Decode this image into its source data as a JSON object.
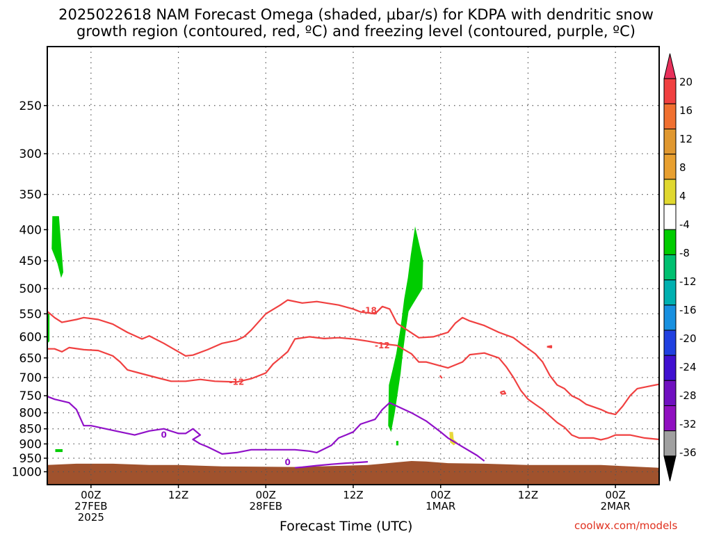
{
  "title": {
    "line1": "2025022618 NAM Forecast Omega (shaded, µbar/s) for KDPA with dendritic snow",
    "line2": "growth region (contoured, red, ºC) and freezing level (contoured, purple, ºC)"
  },
  "credit": "coolwx.com/models",
  "colors": {
    "omega_green": "#00cc00",
    "omega_yellow": "#e8d83a",
    "dgz_red": "#f04040",
    "freezing_purple": "#9010c8",
    "ground_brown": "#a0522d",
    "grid": "#555555"
  },
  "chart_data": {
    "type": "area",
    "title": "2025022618 NAM Forecast Omega (shaded, µbar/s) for KDPA with dendritic snow growth region (contoured, red, ºC) and freezing level (contoured, purple, ºC)",
    "xlabel": "Forecast Time (UTC)",
    "ylabel": "",
    "x_unit": "hours since 2025-02-26 18Z",
    "xlim": [
      0,
      84
    ],
    "y_scale": "log",
    "ylim": [
      1050,
      200
    ],
    "y_ticks": [
      250,
      300,
      350,
      400,
      450,
      500,
      550,
      600,
      650,
      700,
      750,
      800,
      850,
      900,
      950,
      1000
    ],
    "x_ticks": [
      {
        "x": 6,
        "lines": [
          "00Z",
          "27FEB",
          "2025"
        ]
      },
      {
        "x": 18,
        "lines": [
          "12Z"
        ]
      },
      {
        "x": 30,
        "lines": [
          "00Z",
          "28FEB"
        ]
      },
      {
        "x": 42,
        "lines": [
          "12Z"
        ]
      },
      {
        "x": 54,
        "lines": [
          "00Z",
          "1MAR"
        ]
      },
      {
        "x": 66,
        "lines": [
          "12Z"
        ]
      },
      {
        "x": 78,
        "lines": [
          "00Z",
          "2MAR"
        ]
      }
    ],
    "grid": true,
    "colorbar": {
      "label_values": [
        "20",
        "16",
        "12",
        "8",
        "4",
        "-4",
        "-8",
        "-12",
        "-16",
        "-20",
        "-24",
        "-28",
        "-32",
        "-36"
      ],
      "colors": [
        "#e8305a",
        "#f04040",
        "#f07030",
        "#e09830",
        "#e8a030",
        "#e0d830",
        "#ffffff",
        "#00cc00",
        "#00c070",
        "#00b0b0",
        "#1890e0",
        "#2040e0",
        "#4010d0",
        "#7010c0",
        "#9010c0",
        "#a0a0a0",
        "#000000"
      ]
    },
    "contour_labels": [
      {
        "text": "-18",
        "x": 44.2,
        "y": 543,
        "color": "#f04040"
      },
      {
        "text": "-12",
        "x": 46.0,
        "y": 620,
        "color": "#f04040"
      },
      {
        "text": "-12",
        "x": 26.0,
        "y": 712,
        "color": "#f04040"
      },
      {
        "text": "0",
        "x": 16.0,
        "y": 870,
        "color": "#9010c8"
      },
      {
        "text": "0",
        "x": 33.0,
        "y": 965,
        "color": "#9010c8"
      }
    ],
    "series": [
      {
        "kind": "contour",
        "value": -18,
        "color": "#f04040",
        "points": [
          [
            0,
            545
          ],
          [
            1,
            558
          ],
          [
            2,
            568
          ],
          [
            4,
            562
          ],
          [
            5,
            558
          ],
          [
            7,
            562
          ],
          [
            9,
            572
          ],
          [
            11,
            590
          ],
          [
            13,
            605
          ],
          [
            14,
            598
          ],
          [
            16,
            615
          ],
          [
            18,
            635
          ],
          [
            19,
            645
          ],
          [
            20,
            643
          ],
          [
            22,
            630
          ],
          [
            24,
            615
          ],
          [
            26,
            608
          ],
          [
            27,
            600
          ],
          [
            28,
            585
          ],
          [
            30,
            550
          ],
          [
            32,
            532
          ],
          [
            33,
            522
          ],
          [
            35,
            528
          ],
          [
            37,
            525
          ],
          [
            40,
            532
          ],
          [
            42,
            540
          ],
          [
            43,
            546
          ],
          [
            45,
            550
          ],
          [
            46,
            535
          ],
          [
            47,
            540
          ],
          [
            48,
            570
          ],
          [
            51,
            602
          ],
          [
            53,
            600
          ],
          [
            55,
            590
          ],
          [
            56,
            570
          ],
          [
            57,
            558
          ],
          [
            58,
            565
          ],
          [
            60,
            575
          ],
          [
            62,
            590
          ],
          [
            64,
            602
          ],
          [
            65,
            615
          ],
          [
            67,
            640
          ],
          [
            68,
            660
          ],
          [
            69,
            695
          ],
          [
            70,
            720
          ],
          [
            71,
            730
          ],
          [
            72,
            750
          ],
          [
            73,
            760
          ],
          [
            74,
            775
          ],
          [
            76,
            790
          ],
          [
            77,
            800
          ],
          [
            78,
            805
          ],
          [
            79,
            780
          ],
          [
            80,
            750
          ],
          [
            81,
            730
          ],
          [
            83,
            722
          ],
          [
            84,
            718
          ]
        ]
      },
      {
        "kind": "contour",
        "value": -12,
        "color": "#f04040",
        "points": [
          [
            0,
            628
          ],
          [
            1,
            628
          ],
          [
            2,
            635
          ],
          [
            3,
            625
          ],
          [
            5,
            630
          ],
          [
            7,
            632
          ],
          [
            9,
            645
          ],
          [
            10,
            660
          ],
          [
            11,
            680
          ],
          [
            13,
            690
          ],
          [
            15,
            700
          ],
          [
            17,
            710
          ],
          [
            19,
            710
          ],
          [
            21,
            705
          ],
          [
            23,
            710
          ],
          [
            26,
            712
          ],
          [
            28,
            703
          ],
          [
            30,
            688
          ],
          [
            31,
            665
          ],
          [
            32,
            650
          ],
          [
            33,
            635
          ],
          [
            34,
            605
          ],
          [
            36,
            600
          ],
          [
            38,
            604
          ],
          [
            40,
            602
          ],
          [
            42,
            605
          ],
          [
            44,
            610
          ],
          [
            46,
            616
          ],
          [
            48,
            620
          ],
          [
            50,
            640
          ],
          [
            51,
            660
          ],
          [
            52,
            660
          ],
          [
            54,
            670
          ],
          [
            55,
            675
          ],
          [
            57,
            660
          ],
          [
            58,
            642
          ],
          [
            60,
            638
          ],
          [
            62,
            650
          ],
          [
            63,
            672
          ],
          [
            64,
            700
          ],
          [
            65,
            735
          ],
          [
            66,
            760
          ],
          [
            67,
            775
          ],
          [
            68,
            790
          ],
          [
            69,
            810
          ],
          [
            70,
            830
          ],
          [
            71,
            845
          ],
          [
            72,
            870
          ],
          [
            73,
            880
          ],
          [
            75,
            880
          ],
          [
            76,
            886
          ],
          [
            77,
            880
          ],
          [
            78,
            870
          ],
          [
            80,
            870
          ],
          [
            82,
            880
          ],
          [
            84,
            885
          ]
        ]
      },
      {
        "kind": "contour",
        "value": -12,
        "color": "#f04040",
        "points": [
          [
            62.2,
            740
          ],
          [
            62.7,
            737
          ],
          [
            62.9,
            744
          ],
          [
            62.4,
            745
          ],
          [
            62.2,
            740
          ]
        ]
      },
      {
        "kind": "contour",
        "value": -12,
        "color": "#f04040",
        "points": [
          [
            68.6,
            623
          ],
          [
            69.2,
            621
          ],
          [
            69.2,
            625
          ],
          [
            68.6,
            623
          ]
        ]
      },
      {
        "kind": "contour",
        "value": -12,
        "color": "#f04040",
        "points": [
          [
            53.9,
            695
          ],
          [
            54.2,
            702
          ]
        ]
      },
      {
        "kind": "contour",
        "value": 0,
        "color": "#9010c8",
        "points": [
          [
            0,
            752
          ],
          [
            1,
            760
          ],
          [
            2,
            765
          ],
          [
            3,
            770
          ],
          [
            4,
            790
          ],
          [
            5,
            840
          ],
          [
            6,
            840
          ],
          [
            8,
            850
          ],
          [
            10,
            860
          ],
          [
            12,
            870
          ],
          [
            14,
            857
          ],
          [
            16,
            850
          ],
          [
            18,
            865
          ],
          [
            19,
            865
          ],
          [
            20,
            850
          ],
          [
            21,
            870
          ],
          [
            20,
            885
          ],
          [
            21,
            900
          ],
          [
            22,
            910
          ],
          [
            24,
            935
          ],
          [
            26,
            930
          ],
          [
            28,
            920
          ],
          [
            30,
            920
          ],
          [
            32,
            920
          ],
          [
            34,
            920
          ],
          [
            36,
            925
          ],
          [
            37,
            930
          ],
          [
            39,
            905
          ],
          [
            40,
            880
          ],
          [
            41,
            870
          ],
          [
            42,
            860
          ],
          [
            43,
            835
          ],
          [
            45,
            820
          ],
          [
            46,
            790
          ],
          [
            47,
            770
          ],
          [
            48,
            780
          ],
          [
            50,
            800
          ],
          [
            52,
            825
          ],
          [
            54,
            860
          ],
          [
            55,
            880
          ],
          [
            57,
            910
          ],
          [
            59,
            940
          ],
          [
            60,
            960
          ]
        ]
      },
      {
        "kind": "contour",
        "value": 0,
        "color": "#9010c8",
        "points": [
          [
            34,
            985
          ],
          [
            35,
            983
          ],
          [
            37,
            977
          ],
          [
            39,
            972
          ],
          [
            41,
            968
          ],
          [
            43,
            965
          ],
          [
            44,
            963
          ]
        ]
      },
      {
        "kind": "shaded",
        "value": -4,
        "color": "#00cc00",
        "points": [
          [
            0.7,
            380
          ],
          [
            1.6,
            380
          ],
          [
            2.2,
            470
          ],
          [
            1.9,
            480
          ],
          [
            1.4,
            455
          ],
          [
            0.6,
            430
          ],
          [
            0.7,
            380
          ]
        ]
      },
      {
        "kind": "shaded",
        "value": -4,
        "color": "#00cc00",
        "points": [
          [
            0,
            550
          ],
          [
            0.3,
            550
          ],
          [
            0.3,
            610
          ],
          [
            0,
            615
          ]
        ]
      },
      {
        "kind": "shaded",
        "value": -4,
        "color": "#00cc00",
        "points": [
          [
            1.1,
            918
          ],
          [
            2.1,
            918
          ],
          [
            2.1,
            928
          ],
          [
            1.1,
            928
          ],
          [
            1.1,
            918
          ]
        ]
      },
      {
        "kind": "shaded",
        "value": -4,
        "color": "#00cc00",
        "points": [
          [
            50.5,
            395
          ],
          [
            51.6,
            450
          ],
          [
            51.5,
            500
          ],
          [
            50.2,
            530
          ],
          [
            49.6,
            545
          ],
          [
            49.3,
            575
          ],
          [
            48.8,
            640
          ],
          [
            48.5,
            690
          ],
          [
            47.7,
            800
          ],
          [
            47.2,
            860
          ],
          [
            46.8,
            840
          ],
          [
            46.9,
            720
          ],
          [
            47.4,
            680
          ],
          [
            47.9,
            640
          ],
          [
            48.5,
            580
          ],
          [
            49.0,
            520
          ],
          [
            49.5,
            480
          ],
          [
            49.9,
            440
          ],
          [
            50.5,
            395
          ]
        ]
      },
      {
        "kind": "shaded",
        "value": -4,
        "color": "#00cc00",
        "points": [
          [
            47.9,
            890
          ],
          [
            48.2,
            890
          ],
          [
            48.2,
            905
          ],
          [
            47.9,
            905
          ],
          [
            47.9,
            890
          ]
        ]
      },
      {
        "kind": "shaded",
        "value": 4,
        "color": "#e8d83a",
        "points": [
          [
            55.2,
            860
          ],
          [
            55.7,
            860
          ],
          [
            55.8,
            885
          ],
          [
            56.3,
            895
          ],
          [
            55.8,
            905
          ],
          [
            55.3,
            895
          ],
          [
            55.2,
            860
          ]
        ]
      },
      {
        "kind": "terrain",
        "color": "#a0522d",
        "points": [
          [
            0,
            975
          ],
          [
            4,
            970
          ],
          [
            9,
            970
          ],
          [
            14,
            975
          ],
          [
            18,
            975
          ],
          [
            24,
            980
          ],
          [
            34,
            982
          ],
          [
            44,
            975
          ],
          [
            46,
            970
          ],
          [
            48,
            965
          ],
          [
            50,
            960
          ],
          [
            52,
            962
          ],
          [
            55,
            968
          ],
          [
            60,
            970
          ],
          [
            66,
            975
          ],
          [
            76,
            975
          ],
          [
            84,
            985
          ]
        ]
      }
    ]
  }
}
